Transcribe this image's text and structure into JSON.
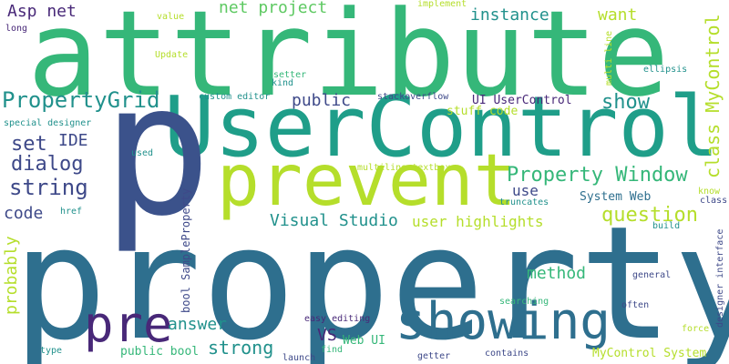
{
  "words": [
    {
      "id": "property",
      "text": "property",
      "color": "#2e6f8e"
    },
    {
      "id": "attribute",
      "text": "attribute",
      "color": "#35b779"
    },
    {
      "id": "usercontrol",
      "text": "UserControl",
      "color": "#1f9e89"
    },
    {
      "id": "p",
      "text": "p",
      "color": "#3b528b"
    },
    {
      "id": "prevent",
      "text": "prevent",
      "color": "#b5de2b"
    },
    {
      "id": "showing",
      "text": "showing",
      "color": "#2e6f8e"
    },
    {
      "id": "pre",
      "text": "pre",
      "color": "#482878"
    },
    {
      "id": "propertygrid",
      "text": "PropertyGrid",
      "color": "#21918c"
    },
    {
      "id": "property-window",
      "text": "Property Window",
      "color": "#35b779"
    },
    {
      "id": "string",
      "text": "string",
      "color": "#3e4989"
    },
    {
      "id": "dialog",
      "text": "dialog",
      "color": "#3e4989"
    },
    {
      "id": "set",
      "text": "set",
      "color": "#3e4989"
    },
    {
      "id": "ide",
      "text": "IDE",
      "color": "#3e4989"
    },
    {
      "id": "code",
      "text": "code",
      "color": "#3e4989"
    },
    {
      "id": "asp-net",
      "text": "Asp net",
      "color": "#482878"
    },
    {
      "id": "net-project",
      "text": "net project",
      "color": "#5ec962"
    },
    {
      "id": "instance",
      "text": "instance",
      "color": "#21918c"
    },
    {
      "id": "want",
      "text": "want",
      "color": "#b5de2b"
    },
    {
      "id": "public",
      "text": "public",
      "color": "#3e4989"
    },
    {
      "id": "show",
      "text": "show",
      "color": "#21918c"
    },
    {
      "id": "class-mycontrol",
      "text": "class MyControl",
      "color": "#b5de2b"
    },
    {
      "id": "question",
      "text": "question",
      "color": "#b5de2b"
    },
    {
      "id": "visual-studio",
      "text": "Visual Studio",
      "color": "#21918c"
    },
    {
      "id": "user-highlights",
      "text": "user highlights",
      "color": "#b5de2b"
    },
    {
      "id": "use",
      "text": "use",
      "color": "#3e4989"
    },
    {
      "id": "method",
      "text": "method",
      "color": "#35b779"
    },
    {
      "id": "answer",
      "text": "answer",
      "color": "#21918c"
    },
    {
      "id": "strong",
      "text": "strong",
      "color": "#21918c"
    },
    {
      "id": "vs",
      "text": "VS",
      "color": "#482878"
    },
    {
      "id": "probably",
      "text": "probably",
      "color": "#b5de2b"
    },
    {
      "id": "ui-usercontrol",
      "text": "UI UserControl",
      "color": "#482878"
    },
    {
      "id": "stuff-code",
      "text": "stuff code",
      "color": "#b5de2b"
    },
    {
      "id": "system-web",
      "text": "System Web",
      "color": "#2e6f8e"
    },
    {
      "id": "mycontrol-system",
      "text": "MyControl System",
      "color": "#b5de2b"
    },
    {
      "id": "public-bool",
      "text": "public bool",
      "color": "#35b779"
    },
    {
      "id": "web-ui",
      "text": "Web UI",
      "color": "#35b779"
    },
    {
      "id": "bool-sampleproperty",
      "text": "bool SampleProperty",
      "color": "#3e4989"
    },
    {
      "id": "value",
      "text": "value",
      "color": "#b5de2b"
    },
    {
      "id": "long",
      "text": "long",
      "color": "#482878"
    },
    {
      "id": "update",
      "text": "Update",
      "color": "#b5de2b"
    },
    {
      "id": "setter",
      "text": "setter",
      "color": "#35b779"
    },
    {
      "id": "kind",
      "text": "kind",
      "color": "#21918c"
    },
    {
      "id": "custom-editor",
      "text": "custom editor",
      "color": "#21918c"
    },
    {
      "id": "stackoverflow",
      "text": "stackoverflow",
      "color": "#3e4989"
    },
    {
      "id": "special-designer",
      "text": "special designer",
      "color": "#21918c"
    },
    {
      "id": "implement",
      "text": "implement",
      "color": "#b5de2b"
    },
    {
      "id": "multi-line",
      "text": "multi line",
      "color": "#b5de2b"
    },
    {
      "id": "ellipsis",
      "text": "ellipsis",
      "color": "#21918c"
    },
    {
      "id": "used",
      "text": "used",
      "color": "#21918c"
    },
    {
      "id": "multiline-textbox",
      "text": "multiline textbox",
      "color": "#b5de2b"
    },
    {
      "id": "truncates",
      "text": "truncates",
      "color": "#21918c"
    },
    {
      "id": "href",
      "text": "href",
      "color": "#21918c"
    },
    {
      "id": "know",
      "text": "know",
      "color": "#b5de2b"
    },
    {
      "id": "class",
      "text": "class",
      "color": "#3e4989"
    },
    {
      "id": "build",
      "text": "build",
      "color": "#21918c"
    },
    {
      "id": "designer-interface",
      "text": "designer interface",
      "color": "#3e4989"
    },
    {
      "id": "general",
      "text": "general",
      "color": "#3e4989"
    },
    {
      "id": "searching",
      "text": "searching",
      "color": "#35b779"
    },
    {
      "id": "often",
      "text": "often",
      "color": "#3e4989"
    },
    {
      "id": "easy-editing",
      "text": "easy editing",
      "color": "#482878"
    },
    {
      "id": "force",
      "text": "force",
      "color": "#b5de2b"
    },
    {
      "id": "launch",
      "text": "launch",
      "color": "#3e4989"
    },
    {
      "id": "find",
      "text": "find",
      "color": "#35b779"
    },
    {
      "id": "getter",
      "text": "getter",
      "color": "#3e4989"
    },
    {
      "id": "contains",
      "text": "contains",
      "color": "#3e4989"
    },
    {
      "id": "type",
      "text": "type",
      "color": "#21918c"
    }
  ]
}
